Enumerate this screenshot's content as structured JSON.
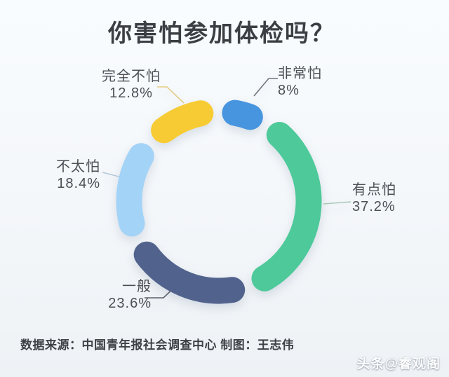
{
  "title": "你害怕参加体检吗？",
  "chart_data": {
    "type": "pie",
    "variant": "donut",
    "title": "你害怕参加体检吗？",
    "categories": [
      "非常怕",
      "有点怕",
      "一般",
      "不太怕",
      "完全不怕"
    ],
    "values": [
      8,
      37.2,
      23.6,
      18.4,
      12.8
    ],
    "display_values": [
      "8%",
      "37.2%",
      "23.6%",
      "18.4%",
      "12.8%"
    ],
    "unit": "%",
    "colors": [
      "#4795df",
      "#4ec99a",
      "#51628c",
      "#a3d3f7",
      "#f7cb33"
    ],
    "start_angle_deg": 2,
    "gap_deg": 5.5,
    "direction": "clockwise",
    "legend_position": "outside-callouts"
  },
  "source_note": "数据来源：中国青年报社会调查中心 制图：王志伟",
  "watermark": "头条@睿观阁"
}
